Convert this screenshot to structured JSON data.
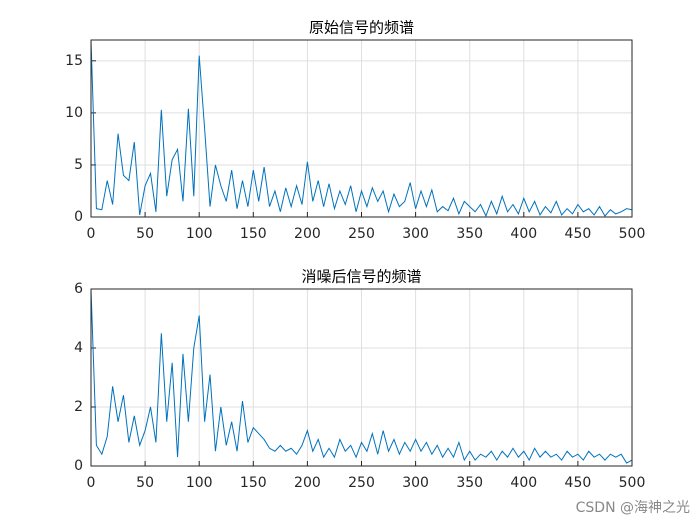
{
  "chart_data": [
    {
      "type": "line",
      "title": "原始信号的频谱",
      "x": [
        0,
        5,
        10,
        15,
        20,
        25,
        30,
        35,
        40,
        45,
        50,
        55,
        60,
        65,
        70,
        75,
        80,
        85,
        90,
        95,
        100,
        105,
        110,
        115,
        120,
        125,
        130,
        135,
        140,
        145,
        150,
        155,
        160,
        165,
        170,
        175,
        180,
        185,
        190,
        195,
        200,
        205,
        210,
        215,
        220,
        225,
        230,
        235,
        240,
        245,
        250,
        255,
        260,
        265,
        270,
        275,
        280,
        285,
        290,
        295,
        300,
        305,
        310,
        315,
        320,
        325,
        330,
        335,
        340,
        345,
        350,
        355,
        360,
        365,
        370,
        375,
        380,
        385,
        390,
        395,
        400,
        405,
        410,
        415,
        420,
        425,
        430,
        435,
        440,
        445,
        450,
        455,
        460,
        465,
        470,
        475,
        480,
        485,
        490,
        495,
        500
      ],
      "values": [
        17,
        0.8,
        0.7,
        3.5,
        1.2,
        8,
        4,
        3.5,
        7.2,
        0.2,
        3,
        4.2,
        0.5,
        10.3,
        2,
        5.5,
        6.5,
        1.5,
        10.4,
        2,
        15.5,
        8.5,
        1,
        5,
        3,
        1.5,
        4.5,
        0.8,
        3.5,
        1,
        4.5,
        1.5,
        4.8,
        1,
        2.5,
        0.5,
        2.8,
        1,
        3,
        1.2,
        5.3,
        1.5,
        3.5,
        1,
        3.2,
        0.8,
        2.5,
        1.2,
        3,
        0.5,
        2.5,
        1,
        2.8,
        1.5,
        2.5,
        0.5,
        2.2,
        1,
        1.5,
        3.3,
        0.8,
        2.5,
        1,
        2.6,
        0.5,
        1,
        0.6,
        1.8,
        0.3,
        1.5,
        1,
        0.5,
        1.2,
        0.1,
        1.5,
        0.3,
        2,
        0.5,
        1.2,
        0.3,
        1.8,
        0.5,
        1.5,
        0.2,
        1,
        0.4,
        1.5,
        0.2,
        0.8,
        0.3,
        1.2,
        0.5,
        0.8,
        0.2,
        1,
        0.1,
        0.7,
        0.3,
        0.5,
        0.8,
        0.7
      ],
      "color": "#0072bd",
      "xlim": [
        0,
        500
      ],
      "xticks": [
        0,
        50,
        100,
        150,
        200,
        250,
        300,
        350,
        400,
        450,
        500
      ],
      "ylim": [
        0,
        17
      ],
      "yticks": [
        0,
        5,
        10,
        15
      ],
      "grid": true
    },
    {
      "type": "line",
      "title": "消噪后信号的频谱",
      "x": [
        0,
        5,
        10,
        15,
        20,
        25,
        30,
        35,
        40,
        45,
        50,
        55,
        60,
        65,
        70,
        75,
        80,
        85,
        90,
        95,
        100,
        105,
        110,
        115,
        120,
        125,
        130,
        135,
        140,
        145,
        150,
        155,
        160,
        165,
        170,
        175,
        180,
        185,
        190,
        195,
        200,
        205,
        210,
        215,
        220,
        225,
        230,
        235,
        240,
        245,
        250,
        255,
        260,
        265,
        270,
        275,
        280,
        285,
        290,
        295,
        300,
        305,
        310,
        315,
        320,
        325,
        330,
        335,
        340,
        345,
        350,
        355,
        360,
        365,
        370,
        375,
        380,
        385,
        390,
        395,
        400,
        405,
        410,
        415,
        420,
        425,
        430,
        435,
        440,
        445,
        450,
        455,
        460,
        465,
        470,
        475,
        480,
        485,
        490,
        495,
        500
      ],
      "values": [
        6,
        0.7,
        0.4,
        1,
        2.7,
        1.5,
        2.4,
        0.8,
        1.7,
        0.7,
        1.2,
        2,
        0.8,
        4.5,
        1.5,
        3.5,
        0.3,
        3.8,
        1.5,
        4,
        5.1,
        1.5,
        3.1,
        0.5,
        2,
        0.7,
        1.5,
        0.5,
        2.2,
        0.8,
        1.3,
        1.1,
        0.9,
        0.6,
        0.5,
        0.7,
        0.5,
        0.6,
        0.4,
        0.7,
        1.2,
        0.5,
        0.9,
        0.3,
        0.6,
        0.3,
        0.9,
        0.5,
        0.7,
        0.3,
        0.8,
        0.5,
        1.1,
        0.4,
        1.2,
        0.5,
        0.9,
        0.4,
        0.8,
        0.5,
        0.9,
        0.5,
        0.8,
        0.4,
        0.7,
        0.3,
        0.6,
        0.3,
        0.8,
        0.2,
        0.5,
        0.2,
        0.4,
        0.3,
        0.5,
        0.2,
        0.5,
        0.3,
        0.6,
        0.3,
        0.5,
        0.2,
        0.6,
        0.3,
        0.5,
        0.3,
        0.4,
        0.2,
        0.5,
        0.3,
        0.4,
        0.2,
        0.5,
        0.3,
        0.4,
        0.2,
        0.4,
        0.3,
        0.4,
        0.1,
        0.2
      ],
      "color": "#0072bd",
      "xlim": [
        0,
        500
      ],
      "xticks": [
        0,
        50,
        100,
        150,
        200,
        250,
        300,
        350,
        400,
        450,
        500
      ],
      "ylim": [
        0,
        6
      ],
      "yticks": [
        0,
        2,
        4,
        6
      ],
      "grid": true
    }
  ],
  "watermark": "CSDN @海神之光"
}
